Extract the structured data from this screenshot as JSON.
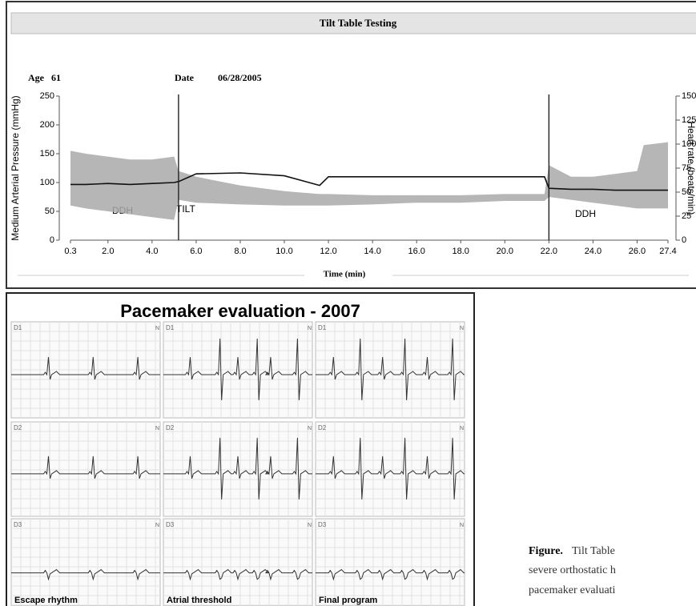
{
  "header": {
    "title": "Tilt Table Testing",
    "age_label": "Age",
    "age": "61",
    "date_label": "Date",
    "date": "06/28/2005"
  },
  "chart_data": {
    "type": "line",
    "xlabel": "Time (min)",
    "ylabel": "Medium Arterial Pressure (mmHg)",
    "y2label": "Heart rate (beats/min)",
    "x": [
      0.3,
      1,
      2,
      3,
      4,
      5,
      5.2,
      6,
      8,
      10,
      11.6,
      12,
      14,
      16,
      18,
      20,
      21.8,
      22,
      23,
      24,
      25,
      26,
      26.3,
      27.4
    ],
    "band": {
      "color": "#a9a9a9",
      "upper": [
        155,
        150,
        145,
        140,
        140,
        145,
        120,
        110,
        95,
        85,
        80,
        80,
        78,
        78,
        78,
        80,
        80,
        130,
        110,
        110,
        115,
        120,
        165,
        170
      ],
      "lower": [
        60,
        55,
        50,
        45,
        40,
        35,
        70,
        65,
        62,
        60,
        60,
        60,
        62,
        65,
        65,
        68,
        68,
        75,
        70,
        65,
        60,
        55,
        55,
        55
      ]
    },
    "series": [
      {
        "color": "#111111",
        "axis": "y2",
        "values": [
          58,
          58,
          59,
          58,
          59,
          60,
          61,
          69,
          70,
          67,
          57,
          66,
          66,
          66,
          66,
          66,
          66,
          54,
          53,
          53,
          52,
          52,
          52,
          52
        ]
      }
    ],
    "vlines": [
      5.2,
      22
    ],
    "annotations": [
      "DDH",
      "TILT",
      "DDH"
    ],
    "xlim": [
      0.3,
      27.4
    ],
    "xticks": [
      0.3,
      {
        "value": 2,
        "label": "2.0"
      },
      {
        "value": 4,
        "label": "4.0"
      },
      {
        "value": 6,
        "label": "6.0"
      },
      {
        "value": 8,
        "label": "8.0"
      },
      {
        "value": 10,
        "label": "10.0"
      },
      {
        "value": 12,
        "label": "12.0"
      },
      {
        "value": 14,
        "label": "14.0"
      },
      {
        "value": 16,
        "label": "16.0"
      },
      {
        "value": 18,
        "label": "18.0"
      },
      {
        "value": 20,
        "label": "20.0"
      },
      {
        "value": 22,
        "label": "22.0"
      },
      {
        "value": 24,
        "label": "24.0"
      },
      {
        "value": 26,
        "label": "26.0"
      },
      27.4
    ],
    "ylim": [
      0,
      250
    ],
    "yticks": [
      0,
      50,
      100,
      150,
      200,
      250
    ],
    "y2lim": [
      0,
      150
    ],
    "y2ticks": [
      0,
      25,
      50,
      75,
      100,
      125,
      150
    ]
  },
  "ecg": {
    "title": "Pacemaker evaluation - 2007",
    "leads": [
      "D1",
      "D2",
      "D3"
    ],
    "marker": "N",
    "columns": [
      "Escape rhythm",
      "Atrial threshold",
      "Final program"
    ]
  },
  "caption": {
    "label": "Figure.",
    "lines": [
      "Tilt Table",
      "severe orthostatic h",
      "pacemaker evaluati"
    ]
  }
}
